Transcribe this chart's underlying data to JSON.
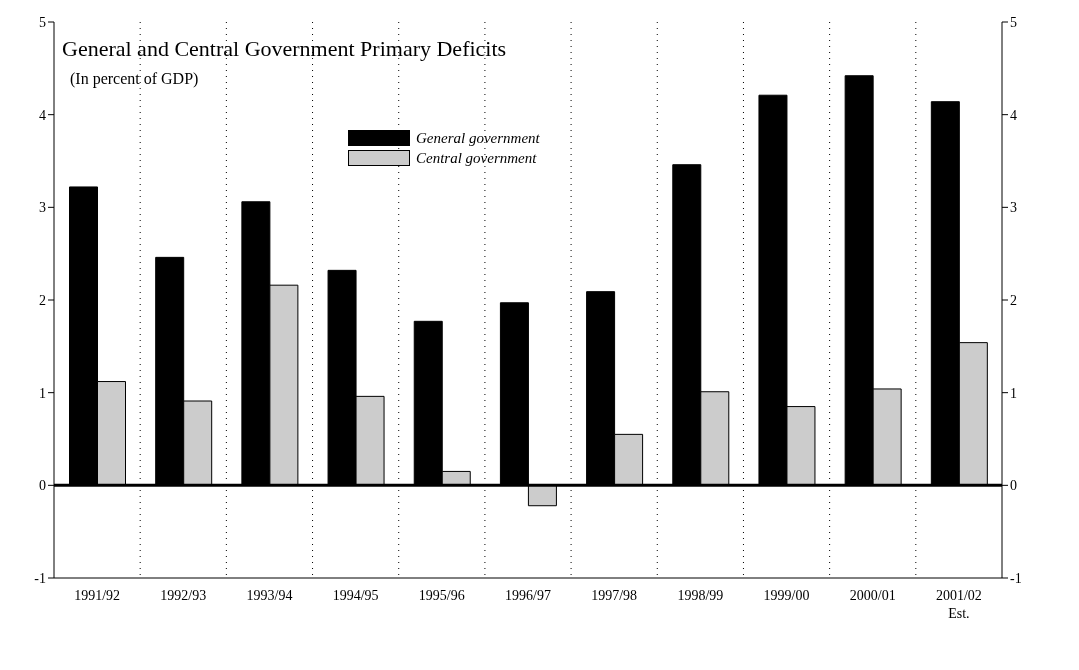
{
  "chart_data": {
    "type": "bar",
    "title": "General and Central Government Primary Deficits",
    "subtitle": "(In percent of GDP)",
    "categories": [
      "1991/92",
      "1992/93",
      "1993/94",
      "1994/95",
      "1995/96",
      "1996/97",
      "1997/98",
      "1998/99",
      "1999/00",
      "2000/01",
      "2001/02\nEst."
    ],
    "series": [
      {
        "name": "General government",
        "color": "#000000",
        "values": [
          3.22,
          2.46,
          3.06,
          2.32,
          1.77,
          1.97,
          2.09,
          3.46,
          4.21,
          4.42,
          4.14
        ]
      },
      {
        "name": "Central government",
        "color": "#cccccc",
        "values": [
          1.12,
          0.91,
          2.16,
          0.96,
          0.15,
          -0.22,
          0.55,
          1.01,
          0.85,
          1.04,
          1.54
        ]
      }
    ],
    "ylim": [
      -1,
      5
    ],
    "yticks": [
      -1,
      0,
      1,
      2,
      3,
      4,
      5
    ],
    "y2lim": [
      -1,
      5
    ],
    "y2ticks": [
      -1,
      0,
      1,
      2,
      3,
      4,
      5
    ],
    "ref_lines": [
      {
        "axis": "y",
        "value": 0
      }
    ],
    "grid": "x",
    "legend": "top"
  }
}
